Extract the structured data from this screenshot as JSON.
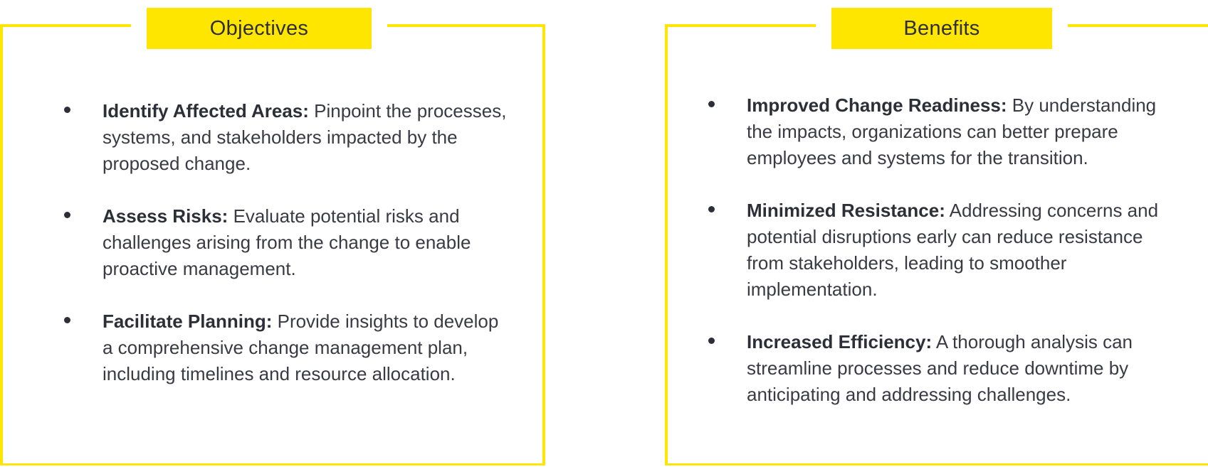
{
  "objectives": {
    "title": "Objectives",
    "items": [
      {
        "term": "Identify Affected Areas:",
        "text": " Pinpoint the processes, systems, and stakeholders impacted by the proposed change."
      },
      {
        "term": "Assess Risks:",
        "text": " Evaluate potential risks and challenges arising from the change to enable proactive management."
      },
      {
        "term": "Facilitate Planning:",
        "text": " Provide insights to develop a comprehensive change management plan, including timelines and resource allocation."
      }
    ]
  },
  "benefits": {
    "title": "Benefits",
    "items": [
      {
        "term": "Improved Change Readiness:",
        "text": " By understanding the impacts, organizations can better prepare employees and systems for the transition."
      },
      {
        "term": "Minimized Resistance:",
        "text": " Addressing concerns and potential disruptions early can reduce resistance from stakeholders, leading to smoother implementation."
      },
      {
        "term": "Increased Efficiency:",
        "text": " A thorough analysis can streamline processes and reduce downtime by anticipating and addressing challenges."
      }
    ]
  },
  "colors": {
    "accent": "#ffe600",
    "text": "#2e2e38"
  }
}
